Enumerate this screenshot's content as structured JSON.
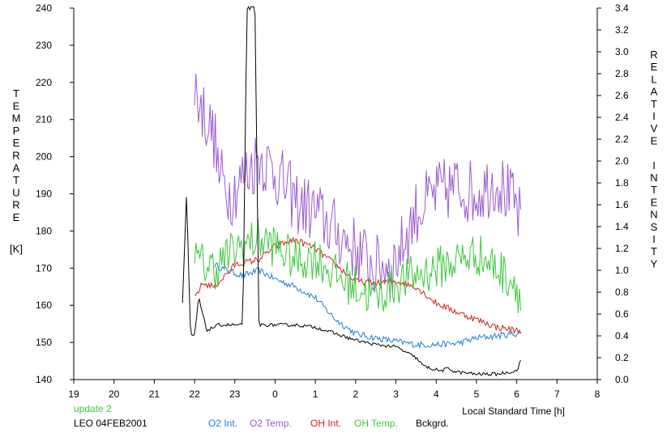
{
  "chart_data": {
    "type": "line",
    "left_axis_label": "TEMPERATURE",
    "left_axis_unit": "[K]",
    "right_axis_label": "RELATIVE INTENSITY",
    "xlabel": "Local Standard Time [h]",
    "station": "LEO 04FEB2001",
    "note": "update 2",
    "xlim": [
      19,
      32
    ],
    "ylim_left": [
      140,
      240
    ],
    "ylim_right": [
      0.0,
      3.4
    ],
    "x_tick_labels": [
      "19",
      "20",
      "21",
      "22",
      "23",
      "0",
      "1",
      "2",
      "3",
      "4",
      "5",
      "6",
      "7",
      "8"
    ],
    "y_left_ticks": [
      140,
      150,
      160,
      170,
      180,
      190,
      200,
      210,
      220,
      230,
      240
    ],
    "y_right_ticks": [
      "0.0",
      "0.2",
      "0.4",
      "0.6",
      "0.8",
      "1.0",
      "1.2",
      "1.4",
      "1.6",
      "1.8",
      "2.0",
      "2.2",
      "2.4",
      "2.6",
      "2.8",
      "3.0",
      "3.2",
      "3.4"
    ],
    "grid": false,
    "legend_position": "bottom",
    "series": [
      {
        "name": "O2 Int.",
        "axis": "right",
        "color": "#1e7fd6",
        "noise": 0.03,
        "x": [
          22.5,
          22.8,
          23.2,
          23.6,
          24.0,
          24.5,
          25.0,
          25.5,
          26.0,
          26.5,
          27.0,
          27.5,
          28.0,
          28.5,
          29.0,
          29.5,
          30.0,
          30.1
        ],
        "y": [
          1.05,
          1.0,
          0.95,
          1.0,
          0.92,
          0.85,
          0.75,
          0.55,
          0.42,
          0.38,
          0.35,
          0.32,
          0.32,
          0.33,
          0.38,
          0.4,
          0.42,
          0.42
        ]
      },
      {
        "name": "O2 Temp.",
        "axis": "left",
        "color": "#9b59d0",
        "noise": 9,
        "x": [
          22.0,
          22.1,
          22.5,
          22.6,
          22.9,
          23.6,
          24.0,
          24.5,
          25.0,
          25.5,
          26.0,
          26.5,
          27.0,
          27.5,
          28.0,
          28.5,
          29.0,
          29.5,
          30.0,
          30.1
        ],
        "y": [
          220,
          215,
          205,
          195,
          190,
          200,
          196,
          188,
          185,
          180,
          175,
          170,
          172,
          185,
          190,
          192,
          190,
          194,
          186,
          182
        ]
      },
      {
        "name": "OH Int.",
        "axis": "right",
        "color": "#d42020",
        "noise": 0.03,
        "x": [
          22.0,
          22.2,
          22.5,
          23.0,
          23.6,
          24.0,
          24.5,
          25.0,
          25.5,
          26.0,
          26.5,
          27.0,
          27.5,
          28.0,
          28.5,
          29.0,
          29.5,
          30.0,
          30.1
        ],
        "y": [
          0.75,
          0.88,
          0.85,
          1.05,
          1.1,
          1.22,
          1.28,
          1.2,
          1.05,
          0.9,
          0.88,
          0.9,
          0.85,
          0.7,
          0.62,
          0.55,
          0.48,
          0.45,
          0.45
        ]
      },
      {
        "name": "OH Temp.",
        "axis": "left",
        "color": "#3cc83c",
        "noise": 6,
        "x": [
          22.0,
          22.5,
          23.0,
          23.6,
          24.0,
          24.5,
          25.0,
          25.5,
          26.0,
          26.5,
          27.0,
          27.5,
          28.0,
          28.5,
          29.0,
          29.5,
          30.0,
          30.1
        ],
        "y": [
          172,
          170,
          175,
          178,
          176,
          172,
          173,
          168,
          165,
          162,
          166,
          168,
          170,
          172,
          174,
          170,
          166,
          160
        ]
      },
      {
        "name": "Bckgrd.",
        "axis": "right",
        "color": "#000000",
        "noise": 0.015,
        "x": [
          21.7,
          21.8,
          21.9,
          22.0,
          22.1,
          22.3,
          22.6,
          22.9,
          23.2,
          23.3,
          23.4,
          23.5,
          23.6,
          24.0,
          24.5,
          25.0,
          25.5,
          26.0,
          26.5,
          27.0,
          27.5,
          27.7,
          28.1,
          28.3,
          28.5,
          29.0,
          29.5,
          30.0,
          30.1
        ],
        "y": [
          0.7,
          1.7,
          0.4,
          0.4,
          0.75,
          0.45,
          0.5,
          0.5,
          0.5,
          3.4,
          3.4,
          3.4,
          0.5,
          0.5,
          0.5,
          0.48,
          0.42,
          0.36,
          0.32,
          0.3,
          0.2,
          0.12,
          0.08,
          0.1,
          0.07,
          0.05,
          0.05,
          0.08,
          0.18
        ]
      }
    ]
  }
}
